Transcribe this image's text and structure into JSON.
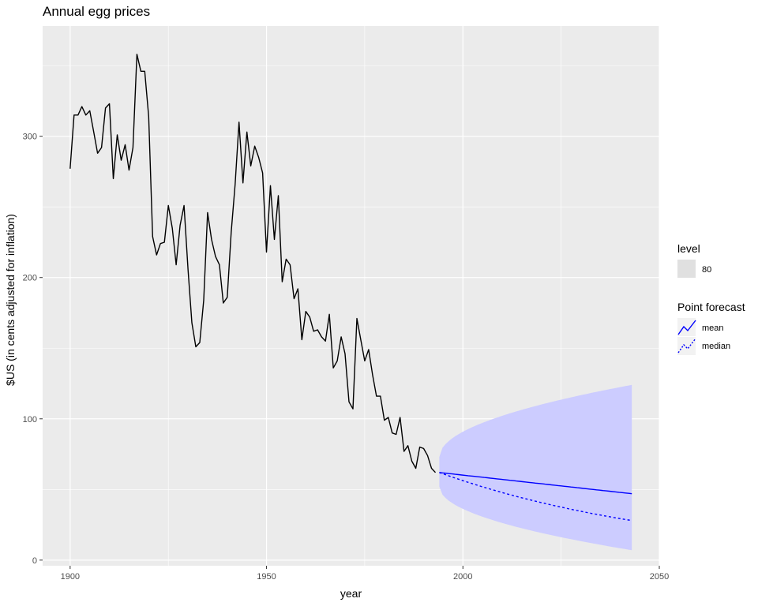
{
  "chart_data": {
    "type": "line",
    "title": "Annual egg prices",
    "xlabel": "year",
    "ylabel": "$US (in cents adjusted for inflation)",
    "xlim": [
      1893,
      2050
    ],
    "ylim": [
      -4,
      378
    ],
    "x_ticks": [
      1900,
      1950,
      2000,
      2050
    ],
    "x_tick_labels": [
      "1900",
      "1950",
      "2000",
      "2050"
    ],
    "y_ticks": [
      0,
      100,
      200,
      300
    ],
    "y_tick_labels": [
      "0",
      "100",
      "200",
      "300"
    ],
    "grid": true,
    "legend_position": "right",
    "history": {
      "x": [
        1900,
        1901,
        1902,
        1903,
        1904,
        1905,
        1906,
        1907,
        1908,
        1909,
        1910,
        1911,
        1912,
        1913,
        1914,
        1915,
        1916,
        1917,
        1918,
        1919,
        1920,
        1921,
        1922,
        1923,
        1924,
        1925,
        1926,
        1927,
        1928,
        1929,
        1930,
        1931,
        1932,
        1933,
        1934,
        1935,
        1936,
        1937,
        1938,
        1939,
        1940,
        1941,
        1942,
        1943,
        1944,
        1945,
        1946,
        1947,
        1948,
        1949,
        1950,
        1951,
        1952,
        1953,
        1954,
        1955,
        1956,
        1957,
        1958,
        1959,
        1960,
        1961,
        1962,
        1963,
        1964,
        1965,
        1966,
        1967,
        1968,
        1969,
        1970,
        1971,
        1972,
        1973,
        1974,
        1975,
        1976,
        1977,
        1978,
        1979,
        1980,
        1981,
        1982,
        1983,
        1984,
        1985,
        1986,
        1987,
        1988,
        1989,
        1990,
        1991,
        1992,
        1993
      ],
      "values": [
        277,
        315,
        315,
        321,
        315,
        318,
        303,
        288,
        292,
        320,
        323,
        270,
        301,
        283,
        294,
        276,
        292,
        358,
        346,
        346,
        314,
        229,
        216,
        224,
        225,
        251,
        235,
        209,
        237,
        251,
        206,
        168,
        151,
        154,
        184,
        246,
        227,
        215,
        209,
        182,
        186,
        232,
        266,
        310,
        267,
        303,
        279,
        293,
        285,
        274,
        218,
        265,
        227,
        258,
        197,
        213,
        209,
        185,
        192,
        156,
        176,
        172,
        162,
        163,
        158,
        155,
        174,
        136,
        141,
        158,
        146,
        112,
        107,
        171,
        156,
        141,
        149,
        131,
        116,
        116,
        99,
        101,
        90,
        89,
        101,
        77,
        81,
        70,
        65,
        80,
        79,
        74,
        65,
        62
      ]
    },
    "forecast": {
      "x_start": 1994,
      "x_end": 2043,
      "mean_start": 62,
      "mean_end": 47,
      "median_start": 62,
      "median_end": 28,
      "lower_start": 52,
      "lower_end": 7,
      "upper_start": 73,
      "upper_end": 124
    },
    "legend": {
      "level_title": "level",
      "level_label": "80",
      "point_title": "Point forecast",
      "mean_label": "mean",
      "median_label": "median"
    },
    "colors": {
      "panel": "#ebebeb",
      "grid_major": "#ffffff",
      "history_line": "#000000",
      "forecast_line": "#0000ff",
      "interval_fill": "#ccccff",
      "legend_key": "#e0e0e0"
    }
  }
}
